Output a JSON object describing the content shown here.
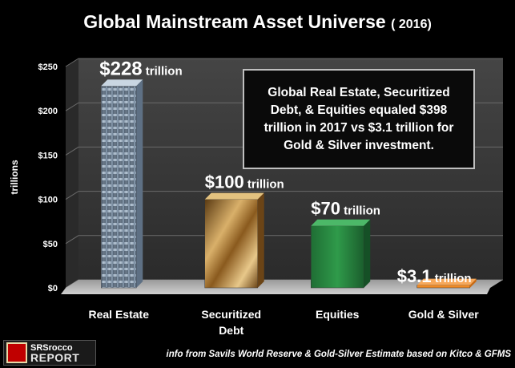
{
  "title": {
    "main": "Global Mainstream Asset Universe",
    "year": "( 2016)"
  },
  "callout": "Global Real Estate, Securitized Debt, & Equities equaled $398 trillion in 2017 vs $3.1 trillion for Gold & Silver investment.",
  "footer": {
    "logo_line1": "SRSrocco",
    "logo_line2": "REPORT",
    "logo_mark": "SRSR",
    "source": "info from Savils World Reserve & Gold-Silver Estimate based on Kitco & GFMS"
  },
  "chart_data": {
    "type": "bar",
    "title": "Global Mainstream Asset Universe",
    "ylabel": "trillions",
    "ylim": [
      0,
      250
    ],
    "yticks": [
      0,
      50,
      100,
      150,
      200,
      250
    ],
    "ytick_labels": [
      "$0",
      "$50",
      "$100",
      "$150",
      "$200",
      "$250"
    ],
    "categories": [
      "Real Estate",
      "Securitized Debt",
      "Equities",
      "Gold & Silver"
    ],
    "category_lines": [
      [
        "Real Estate"
      ],
      [
        "Securitized",
        "Debt"
      ],
      [
        "Equities"
      ],
      [
        "Gold & Silver"
      ]
    ],
    "values": [
      228,
      100,
      70,
      3.1
    ],
    "data_labels": [
      {
        "amount": "$228",
        "unit": "trillion"
      },
      {
        "amount": "$100",
        "unit": "trillion"
      },
      {
        "amount": "$70",
        "unit": "trillion"
      },
      {
        "amount": "$3.1",
        "unit": "trillion"
      }
    ],
    "grid": true
  },
  "colors": {
    "real_estate": "#8fa3b8",
    "securitized_debt": "#a9782f",
    "equities": "#1f7a3a",
    "gold_silver": "#f08a24",
    "plot_wall": "#3a3a3a",
    "floor": "#b5b5b5"
  }
}
